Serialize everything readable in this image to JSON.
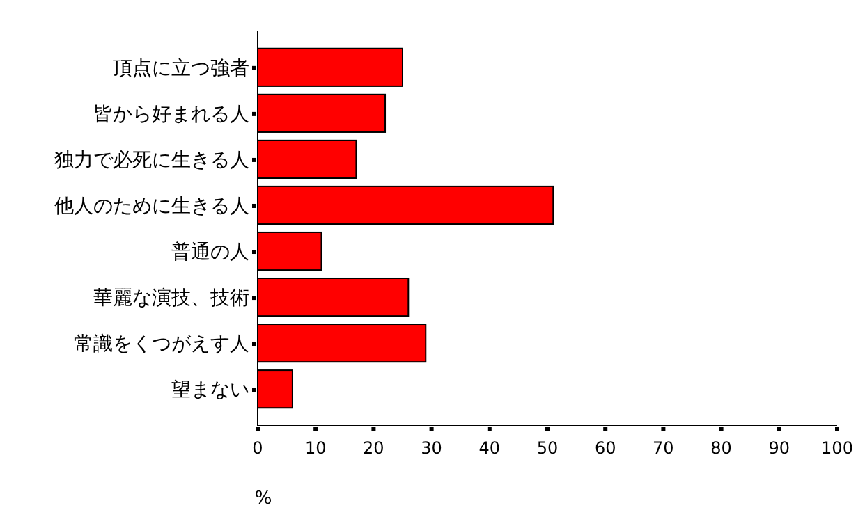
{
  "chart_data": {
    "type": "bar",
    "orientation": "horizontal",
    "xlabel": "%",
    "categories": [
      "頂点に立つ強者",
      "皆から好まれる人",
      "独力で必死に生きる人",
      "他人のために生きる人",
      "普通の人",
      "華麗な演技、技術",
      "常識をくつがえす人",
      "望まない"
    ],
    "values": [
      25,
      22,
      17,
      51,
      11,
      26,
      29,
      6
    ],
    "color": "#ff0000",
    "xlim": [
      0,
      100
    ],
    "xticks": [
      0,
      10,
      20,
      30,
      40,
      50,
      60,
      70,
      80,
      90,
      100
    ]
  }
}
